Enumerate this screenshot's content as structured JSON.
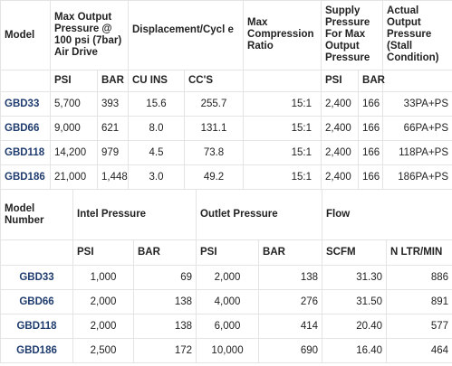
{
  "table1": {
    "headers": {
      "model": "Model",
      "max_output": "Max Output Pressure @ 100 psi (7bar) Air Drive",
      "displacement": "Displacement/Cycl e",
      "compression": "Max Compression Ratio",
      "supply": "Supply Pressure For Max Output Pressure",
      "actual": "Actual Output Pressure (Stall Condition)"
    },
    "subheaders": [
      "PSI",
      "BAR",
      "CU INS",
      "CC'S",
      "PSI",
      "BAR"
    ],
    "rows": [
      {
        "model": "GBD33",
        "psi": "5,700",
        "bar": "393",
        "cuins": "15.6",
        "ccs": "255.7",
        "ratio": "15:1",
        "supply_psi": "2,400",
        "supply_bar": "166",
        "actual": "33PA+PS"
      },
      {
        "model": "GBD66",
        "psi": "9,000",
        "bar": "621",
        "cuins": "8.0",
        "ccs": "131.1",
        "ratio": "15:1",
        "supply_psi": "2,400",
        "supply_bar": "166",
        "actual": "66PA+PS"
      },
      {
        "model": "GBD118",
        "psi": "14,200",
        "bar": "979",
        "cuins": "4.5",
        "ccs": "73.8",
        "ratio": "15:1",
        "supply_psi": "2,400",
        "supply_bar": "166",
        "actual": "118PA+PS"
      },
      {
        "model": "GBD186",
        "psi": "21,000",
        "bar": "1,448",
        "cuins": "3.0",
        "ccs": "49.2",
        "ratio": "15:1",
        "supply_psi": "2,400",
        "supply_bar": "166",
        "actual": "186PA+PS"
      }
    ]
  },
  "table2": {
    "headers": {
      "model": "Model Number",
      "inlet": "Intel Pressure",
      "outlet": "Outlet Pressure",
      "flow": "Flow"
    },
    "subheaders": [
      "PSI",
      "BAR",
      "PSI",
      "BAR",
      "SCFM",
      "N LTR/MIN"
    ],
    "rows": [
      {
        "model": "GBD33",
        "in_psi": "1,000",
        "in_bar": "69",
        "out_psi": "2,000",
        "out_bar": "138",
        "scfm": "31.30",
        "nltr": "886"
      },
      {
        "model": "GBD66",
        "in_psi": "2,000",
        "in_bar": "138",
        "out_psi": "4,000",
        "out_bar": "276",
        "scfm": "31.50",
        "nltr": "891"
      },
      {
        "model": "GBD118",
        "in_psi": "2,000",
        "in_bar": "138",
        "out_psi": "6,000",
        "out_bar": "414",
        "scfm": "20.40",
        "nltr": "577"
      },
      {
        "model": "GBD186",
        "in_psi": "2,500",
        "in_bar": "172",
        "out_psi": "10,000",
        "out_bar": "690",
        "scfm": "16.40",
        "nltr": "464"
      }
    ]
  }
}
